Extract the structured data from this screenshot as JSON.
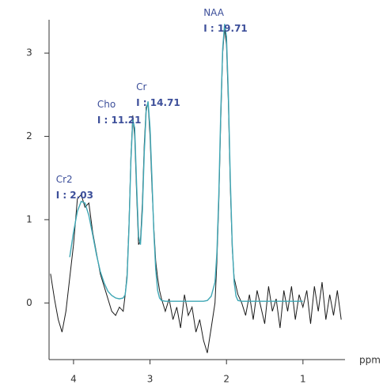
{
  "chart_data": {
    "type": "line",
    "x_label": "ppm",
    "xlim": [
      4.32,
      0.45
    ],
    "ylim": [
      -0.68,
      3.4
    ],
    "xticks": [
      4,
      3,
      2,
      1
    ],
    "yticks": [
      0,
      1,
      2,
      3
    ],
    "x": [
      4.3,
      4.25,
      4.2,
      4.15,
      4.1,
      4.05,
      4.0,
      3.95,
      3.9,
      3.85,
      3.8,
      3.75,
      3.7,
      3.65,
      3.6,
      3.55,
      3.5,
      3.45,
      3.4,
      3.35,
      3.325,
      3.3,
      3.275,
      3.25,
      3.225,
      3.2,
      3.175,
      3.15,
      3.125,
      3.1,
      3.075,
      3.05,
      3.025,
      3.0,
      2.975,
      2.95,
      2.925,
      2.9,
      2.875,
      2.85,
      2.8,
      2.75,
      2.7,
      2.65,
      2.6,
      2.55,
      2.5,
      2.45,
      2.4,
      2.35,
      2.3,
      2.25,
      2.2,
      2.15,
      2.125,
      2.1,
      2.075,
      2.05,
      2.025,
      2.0,
      1.975,
      1.95,
      1.925,
      1.9,
      1.875,
      1.85,
      1.8,
      1.75,
      1.7,
      1.65,
      1.6,
      1.55,
      1.5,
      1.45,
      1.4,
      1.35,
      1.3,
      1.25,
      1.2,
      1.15,
      1.1,
      1.05,
      1.0,
      0.95,
      0.9,
      0.85,
      0.8,
      0.75,
      0.7,
      0.65,
      0.6,
      0.55,
      0.5
    ],
    "series": [
      {
        "color": "#1a1a1a",
        "values": [
          0.35,
          0.05,
          -0.2,
          -0.35,
          -0.1,
          0.3,
          0.7,
          1.25,
          1.3,
          1.15,
          1.2,
          0.85,
          0.6,
          0.35,
          0.2,
          0.05,
          -0.1,
          -0.15,
          -0.05,
          -0.1,
          0.1,
          0.35,
          0.95,
          1.75,
          2.25,
          2.0,
          1.3,
          0.7,
          0.75,
          1.2,
          1.9,
          2.35,
          2.4,
          2.0,
          1.4,
          0.9,
          0.5,
          0.3,
          0.15,
          0.05,
          -0.1,
          0.05,
          -0.2,
          -0.05,
          -0.3,
          0.1,
          -0.15,
          -0.05,
          -0.35,
          -0.2,
          -0.45,
          -0.6,
          -0.3,
          0.0,
          0.5,
          1.2,
          2.2,
          3.0,
          3.3,
          3.1,
          2.4,
          1.4,
          0.65,
          0.3,
          0.2,
          0.1,
          0.0,
          -0.15,
          0.1,
          -0.2,
          0.15,
          -0.05,
          -0.25,
          0.2,
          -0.1,
          0.05,
          -0.3,
          0.15,
          -0.1,
          0.2,
          -0.2,
          0.1,
          -0.05,
          0.15,
          -0.25,
          0.2,
          -0.1,
          0.25,
          -0.2,
          0.1,
          -0.15,
          0.15,
          -0.2
        ]
      },
      {
        "color": "#3fa7b5",
        "values": [
          null,
          null,
          null,
          null,
          null,
          0.55,
          0.85,
          1.1,
          1.22,
          1.2,
          1.05,
          0.82,
          0.58,
          0.38,
          0.24,
          0.14,
          0.09,
          0.06,
          0.05,
          0.06,
          0.1,
          0.3,
          0.9,
          1.7,
          2.2,
          2.1,
          1.4,
          0.8,
          0.7,
          1.1,
          1.8,
          2.3,
          2.42,
          2.1,
          1.5,
          0.85,
          0.4,
          0.15,
          0.06,
          0.03,
          0.02,
          0.02,
          0.02,
          0.02,
          0.02,
          0.02,
          0.02,
          0.02,
          0.02,
          0.02,
          0.02,
          0.03,
          0.08,
          0.25,
          0.6,
          1.3,
          2.3,
          3.05,
          3.35,
          3.2,
          2.5,
          1.5,
          0.7,
          0.25,
          0.08,
          0.03,
          0.02,
          0.02,
          0.02,
          0.02,
          0.02,
          0.02,
          0.02,
          0.02,
          0.02,
          0.02,
          0.02,
          0.02,
          0.02,
          0.02,
          0.02,
          0.02,
          0.02,
          null,
          null,
          null,
          null,
          null,
          null,
          null,
          null,
          null,
          null
        ]
      }
    ],
    "annotations": [
      {
        "name": "Cr2",
        "text": "I : 2.03",
        "x": 4.23,
        "y": 1.29
      },
      {
        "name": "Cho",
        "text": "I : 11.21",
        "x": 3.69,
        "y": 2.19
      },
      {
        "name": "Cr",
        "text": "I : 14.71",
        "x": 3.18,
        "y": 2.4
      },
      {
        "name": "NAA",
        "text": "I : 19.71",
        "x": 2.3,
        "y": 3.29
      }
    ]
  }
}
